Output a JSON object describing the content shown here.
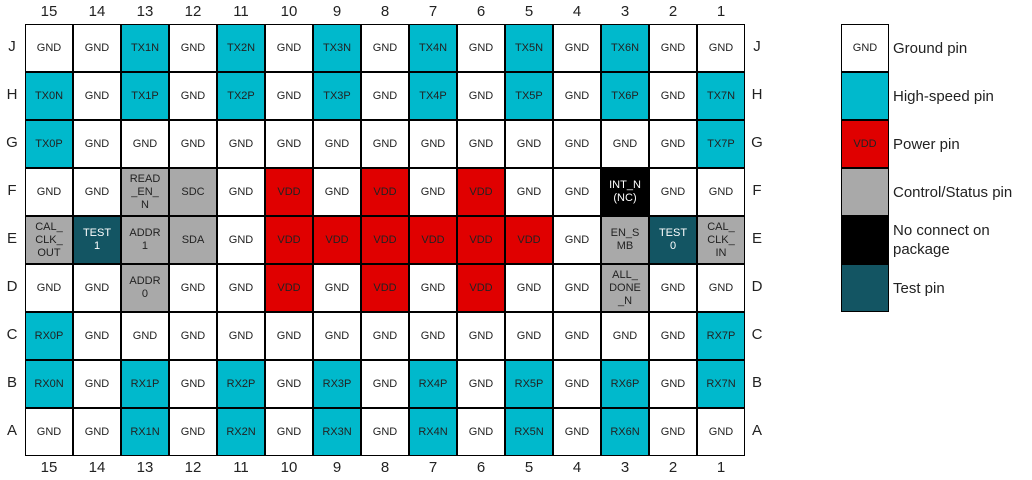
{
  "columns": [
    "15",
    "14",
    "13",
    "12",
    "11",
    "10",
    "9",
    "8",
    "7",
    "6",
    "5",
    "4",
    "3",
    "2",
    "1"
  ],
  "rows": [
    {
      "label": "J",
      "pins": [
        "GND",
        "GND",
        "TX1N",
        "GND",
        "TX2N",
        "GND",
        "TX3N",
        "GND",
        "TX4N",
        "GND",
        "TX5N",
        "GND",
        "TX6N",
        "GND",
        "GND"
      ],
      "types": [
        "g",
        "g",
        "h",
        "g",
        "h",
        "g",
        "h",
        "g",
        "h",
        "g",
        "h",
        "g",
        "h",
        "g",
        "g"
      ]
    },
    {
      "label": "H",
      "pins": [
        "TX0N",
        "GND",
        "TX1P",
        "GND",
        "TX2P",
        "GND",
        "TX3P",
        "GND",
        "TX4P",
        "GND",
        "TX5P",
        "GND",
        "TX6P",
        "GND",
        "TX7N"
      ],
      "types": [
        "h",
        "g",
        "h",
        "g",
        "h",
        "g",
        "h",
        "g",
        "h",
        "g",
        "h",
        "g",
        "h",
        "g",
        "h"
      ]
    },
    {
      "label": "G",
      "pins": [
        "TX0P",
        "GND",
        "GND",
        "GND",
        "GND",
        "GND",
        "GND",
        "GND",
        "GND",
        "GND",
        "GND",
        "GND",
        "GND",
        "GND",
        "TX7P"
      ],
      "types": [
        "h",
        "g",
        "g",
        "g",
        "g",
        "g",
        "g",
        "g",
        "g",
        "g",
        "g",
        "g",
        "g",
        "g",
        "h"
      ]
    },
    {
      "label": "F",
      "pins": [
        "GND",
        "GND",
        "READ\n_EN_\nN",
        "SDC",
        "GND",
        "VDD",
        "GND",
        "VDD",
        "GND",
        "VDD",
        "GND",
        "GND",
        "INT_N\n(NC)",
        "GND",
        "GND"
      ],
      "types": [
        "g",
        "g",
        "c",
        "c",
        "g",
        "v",
        "g",
        "v",
        "g",
        "v",
        "g",
        "g",
        "n",
        "g",
        "g"
      ]
    },
    {
      "label": "E",
      "pins": [
        "CAL_\nCLK_\nOUT",
        "TEST\n1",
        "ADDR\n1",
        "SDA",
        "GND",
        "VDD",
        "VDD",
        "VDD",
        "VDD",
        "VDD",
        "VDD",
        "GND",
        "EN_S\nMB",
        "TEST\n0",
        "CAL_\nCLK_\nIN"
      ],
      "types": [
        "c",
        "t",
        "c",
        "c",
        "g",
        "v",
        "v",
        "v",
        "v",
        "v",
        "v",
        "g",
        "c",
        "t",
        "c"
      ]
    },
    {
      "label": "D",
      "pins": [
        "GND",
        "GND",
        "ADDR\n0",
        "GND",
        "GND",
        "VDD",
        "GND",
        "VDD",
        "GND",
        "VDD",
        "GND",
        "GND",
        "ALL_\nDONE\n_N",
        "GND",
        "GND"
      ],
      "types": [
        "g",
        "g",
        "c",
        "g",
        "g",
        "v",
        "g",
        "v",
        "g",
        "v",
        "g",
        "g",
        "c",
        "g",
        "g"
      ]
    },
    {
      "label": "C",
      "pins": [
        "RX0P",
        "GND",
        "GND",
        "GND",
        "GND",
        "GND",
        "GND",
        "GND",
        "GND",
        "GND",
        "GND",
        "GND",
        "GND",
        "GND",
        "RX7P"
      ],
      "types": [
        "h",
        "g",
        "g",
        "g",
        "g",
        "g",
        "g",
        "g",
        "g",
        "g",
        "g",
        "g",
        "g",
        "g",
        "h"
      ]
    },
    {
      "label": "B",
      "pins": [
        "RX0N",
        "GND",
        "RX1P",
        "GND",
        "RX2P",
        "GND",
        "RX3P",
        "GND",
        "RX4P",
        "GND",
        "RX5P",
        "GND",
        "RX6P",
        "GND",
        "RX7N"
      ],
      "types": [
        "h",
        "g",
        "h",
        "g",
        "h",
        "g",
        "h",
        "g",
        "h",
        "g",
        "h",
        "g",
        "h",
        "g",
        "h"
      ]
    },
    {
      "label": "A",
      "pins": [
        "GND",
        "GND",
        "RX1N",
        "GND",
        "RX2N",
        "GND",
        "RX3N",
        "GND",
        "RX4N",
        "GND",
        "RX5N",
        "GND",
        "RX6N",
        "GND",
        "GND"
      ],
      "types": [
        "g",
        "g",
        "h",
        "g",
        "h",
        "g",
        "h",
        "g",
        "h",
        "g",
        "h",
        "g",
        "h",
        "g",
        "g"
      ]
    }
  ],
  "type_colors": {
    "g": {
      "bg": "#ffffff",
      "fg": "#222222"
    },
    "h": {
      "bg": "#00b9cc",
      "fg": "#222222"
    },
    "v": {
      "bg": "#e00000",
      "fg": "#222222"
    },
    "c": {
      "bg": "#a9a9a9",
      "fg": "#222222"
    },
    "n": {
      "bg": "#000000",
      "fg": "#ffffff"
    },
    "t": {
      "bg": "#135563",
      "fg": "#ffffff"
    }
  },
  "legend": [
    {
      "type": "g",
      "swatch_text": "GND",
      "label": "Ground pin"
    },
    {
      "type": "h",
      "swatch_text": "",
      "label": "High-speed pin"
    },
    {
      "type": "v",
      "swatch_text": "VDD",
      "label": "Power pin"
    },
    {
      "type": "c",
      "swatch_text": "",
      "label": "Control/Status pin"
    },
    {
      "type": "n",
      "swatch_text": "",
      "label": "No connect on\npackage"
    },
    {
      "type": "t",
      "swatch_text": "",
      "label": "Test pin"
    }
  ]
}
